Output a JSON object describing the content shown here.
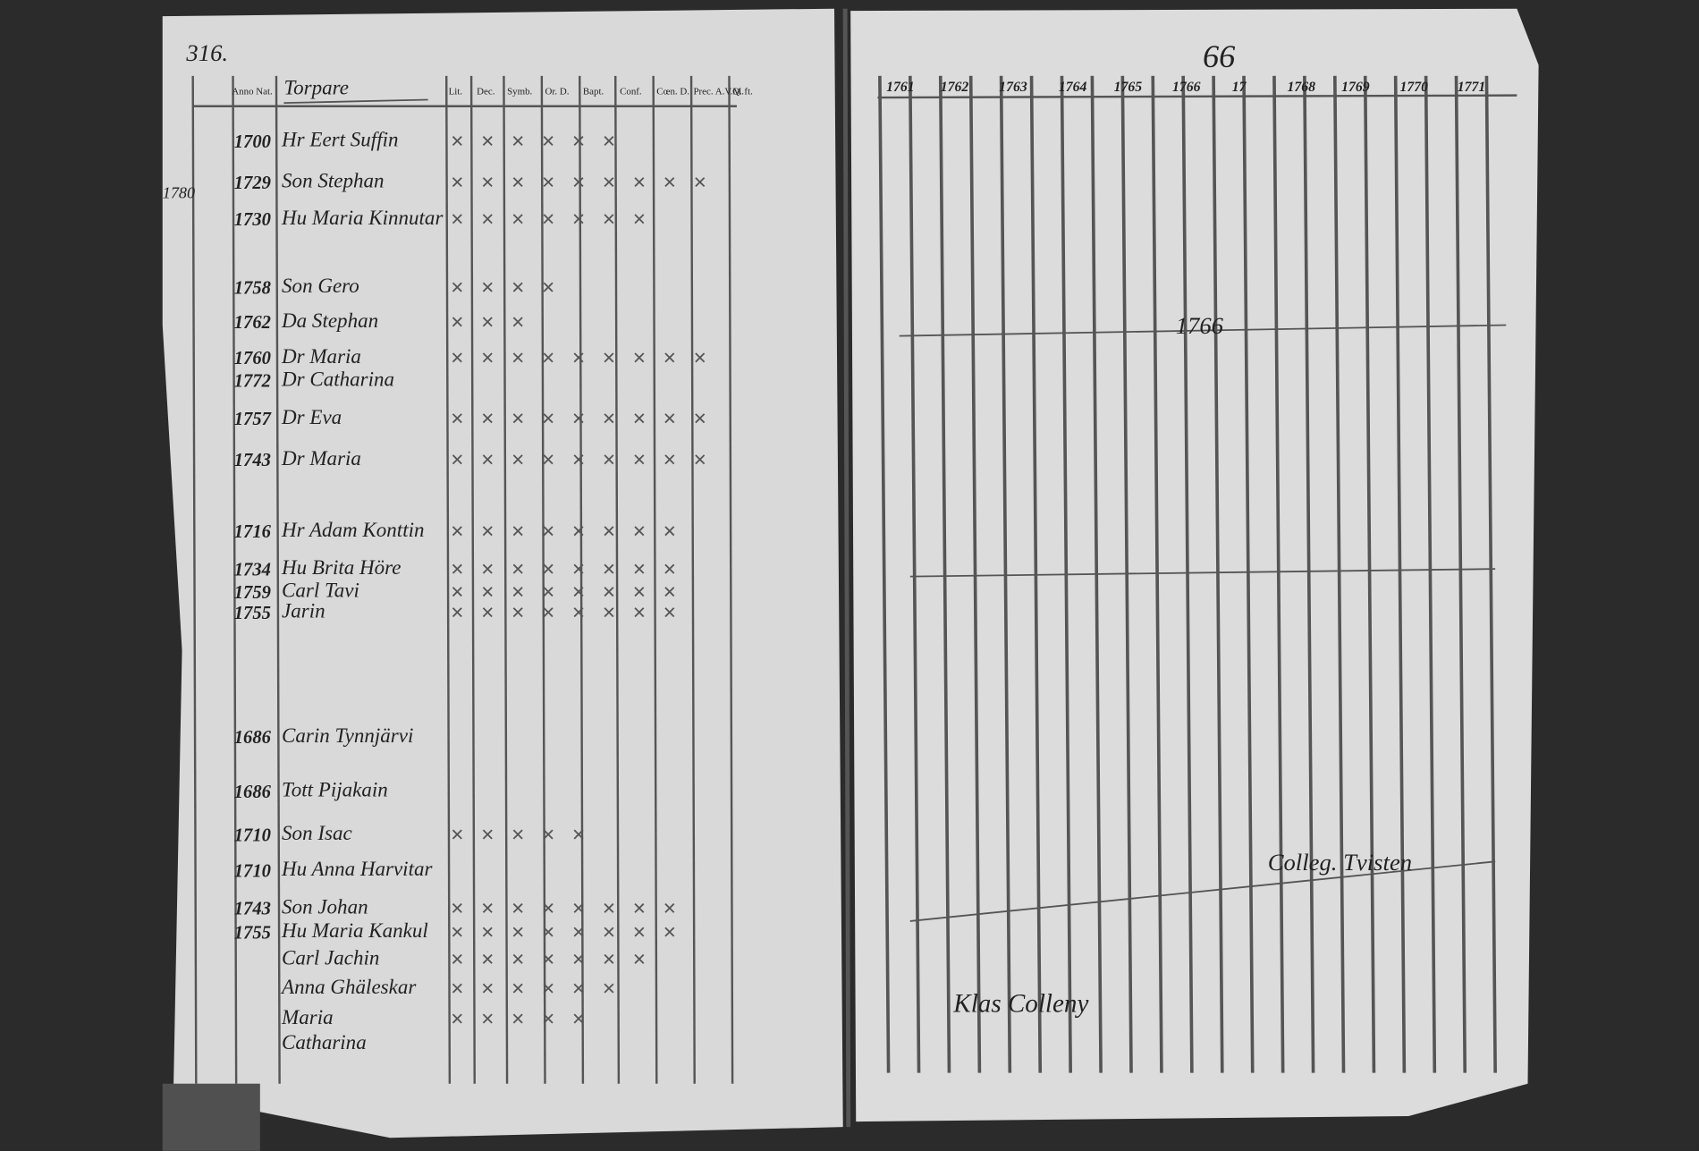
{
  "left_page": {
    "page_number": "316.",
    "headers": [
      "Anno Nat.",
      "Torpare",
      "Lit.",
      "Dec.",
      "Symb.",
      "Or. D.",
      "Bapt.",
      "Conf.",
      "Cœn. D.",
      "Prec. A.V.M.",
      "Q. ft."
    ],
    "margin_note": "1780",
    "rows": [
      {
        "year": "1700",
        "name": "Hr Eert Suffin"
      },
      {
        "year": "1729",
        "name": "Son Stephan"
      },
      {
        "year": "1730",
        "name": "Hu Maria Kinnutar"
      },
      {
        "year": "1758",
        "name": "Son Gero"
      },
      {
        "year": "1762",
        "name": "Da Stephan"
      },
      {
        "year": "1760",
        "name": "Dr Maria"
      },
      {
        "year": "1772",
        "name": "Dr Catharina"
      },
      {
        "year": "1757",
        "name": "Dr Eva"
      },
      {
        "year": "1743",
        "name": "Dr Maria"
      },
      {
        "year": "1716",
        "name": "Hr Adam Konttin"
      },
      {
        "year": "1734",
        "name": "Hu Brita Höre"
      },
      {
        "year": "1759",
        "name": "Carl Tavi"
      },
      {
        "year": "1755",
        "name": "Jarin"
      },
      {
        "year": "1686",
        "name": "Carin Tynnjärvi"
      },
      {
        "year": "1686",
        "name": "Tott Pijakain"
      },
      {
        "year": "1710",
        "name": "Son Isac"
      },
      {
        "year": "1710",
        "name": "Hu Anna Harvitar"
      },
      {
        "year": "1743",
        "name": "Son Johan"
      },
      {
        "year": "1755",
        "name": "Hu Maria Kankul"
      },
      {
        "name": "Carl Jachin"
      },
      {
        "name": "Anna Ghäleskar"
      },
      {
        "name": "Maria"
      },
      {
        "name": "Catharina"
      }
    ]
  },
  "right_page": {
    "page_number": "66",
    "years": [
      "1761",
      "1762",
      "1763",
      "1764",
      "1765",
      "1766",
      "17",
      "1768",
      "1769",
      "1770",
      "1771"
    ],
    "notes": [
      "1766",
      "Colleg. Tvisten",
      "Klas Colleny"
    ]
  }
}
